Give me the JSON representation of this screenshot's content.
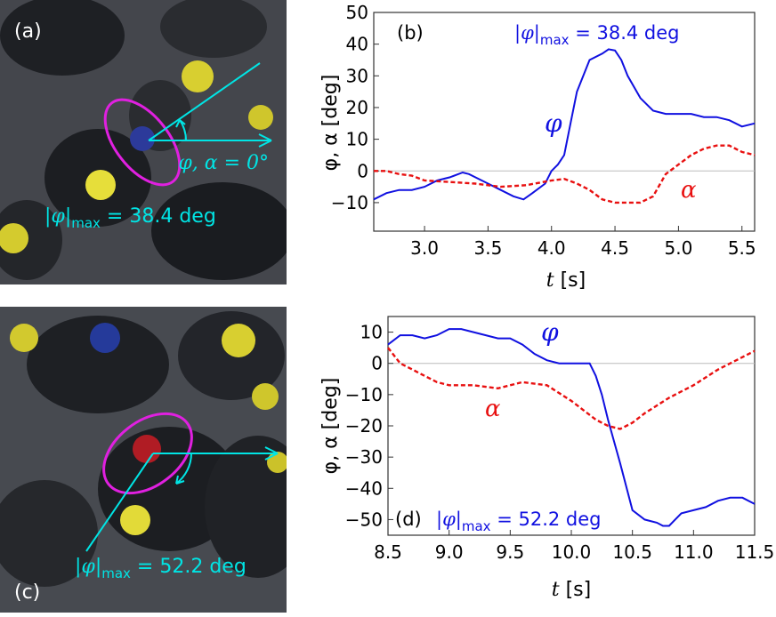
{
  "panels": {
    "a": {
      "label": "(a)",
      "annotation_prefix": "|φ|",
      "annotation_sub": "max",
      "annotation_value": " = 38.4 deg",
      "arrow_label": "φ, α = 0°"
    },
    "c": {
      "label": "(c)",
      "annotation_prefix": "|φ|",
      "annotation_sub": "max",
      "annotation_value": " = 52.2 deg"
    }
  },
  "colors": {
    "phi": "#1010e0",
    "alpha": "#e81010",
    "cyan": "#00e5e5",
    "magenta": "#e020e0",
    "photo_bg": "#3a3c40"
  },
  "chart_data": [
    {
      "panel_label": "(b)",
      "type": "line",
      "title_prefix": "|φ|",
      "title_sub": "max",
      "title_value": " = 38.4 deg",
      "xlabel": "t [s]",
      "ylabel": "φ, α [deg]",
      "xlim": [
        2.6,
        5.6
      ],
      "ylim": [
        -19,
        50
      ],
      "xticks": [
        "3.0",
        "3.5",
        "4.0",
        "4.5",
        "5.0",
        "5.5"
      ],
      "xtick_values": [
        3.0,
        3.5,
        4.0,
        4.5,
        5.0,
        5.5
      ],
      "yticks": [
        "−10",
        "0",
        "10",
        "20",
        "30",
        "40",
        "50"
      ],
      "ytick_values": [
        -10,
        0,
        10,
        20,
        30,
        40,
        50
      ],
      "series": [
        {
          "name": "φ",
          "style": "solid",
          "x": [
            2.6,
            2.7,
            2.8,
            2.9,
            3.0,
            3.1,
            3.2,
            3.3,
            3.35,
            3.4,
            3.5,
            3.6,
            3.7,
            3.78,
            3.85,
            3.95,
            4.0,
            4.05,
            4.1,
            4.15,
            4.2,
            4.3,
            4.4,
            4.45,
            4.5,
            4.55,
            4.6,
            4.7,
            4.8,
            4.9,
            5.0,
            5.1,
            5.2,
            5.3,
            5.4,
            5.5,
            5.6
          ],
          "values": [
            -9,
            -7,
            -6,
            -6,
            -5,
            -3,
            -2,
            -0.5,
            -1,
            -2,
            -4,
            -6,
            -8,
            -9,
            -7,
            -4,
            0,
            2,
            5,
            15,
            25,
            35,
            37,
            38.4,
            38,
            35,
            30,
            23,
            19,
            18,
            18,
            18,
            17,
            17,
            16,
            14,
            15
          ]
        },
        {
          "name": "α",
          "style": "dashed",
          "x": [
            2.6,
            2.7,
            2.8,
            2.9,
            3.0,
            3.2,
            3.4,
            3.6,
            3.8,
            4.0,
            4.1,
            4.2,
            4.3,
            4.4,
            4.5,
            4.6,
            4.7,
            4.8,
            4.9,
            5.0,
            5.1,
            5.2,
            5.3,
            5.4,
            5.5,
            5.6
          ],
          "values": [
            0,
            0,
            -1,
            -1.5,
            -3,
            -3.5,
            -4,
            -5,
            -4.5,
            -3,
            -2.5,
            -4,
            -6,
            -9,
            -10,
            -10,
            -10,
            -8,
            -1,
            2,
            5,
            7,
            8,
            8,
            6,
            5
          ]
        }
      ],
      "series_labels": [
        "φ",
        "α"
      ]
    },
    {
      "panel_label": "(d)",
      "type": "line",
      "title_prefix": "|φ|",
      "title_sub": "max",
      "title_value": " = 52.2 deg",
      "xlabel": "t [s]",
      "ylabel": "φ, α [deg]",
      "xlim": [
        8.5,
        11.5
      ],
      "ylim": [
        -55,
        15
      ],
      "xticks": [
        "8.5",
        "9.0",
        "9.5",
        "10.0",
        "10.5",
        "11.0",
        "11.5"
      ],
      "xtick_values": [
        8.5,
        9.0,
        9.5,
        10.0,
        10.5,
        11.0,
        11.5
      ],
      "yticks": [
        "10",
        "0",
        "−10",
        "−20",
        "−30",
        "−40",
        "−50"
      ],
      "ytick_values": [
        10,
        0,
        -10,
        -20,
        -30,
        -40,
        -50
      ],
      "series": [
        {
          "name": "φ",
          "style": "solid",
          "x": [
            8.5,
            8.6,
            8.7,
            8.8,
            8.9,
            9.0,
            9.1,
            9.2,
            9.3,
            9.4,
            9.5,
            9.6,
            9.7,
            9.8,
            9.9,
            10.0,
            10.1,
            10.15,
            10.2,
            10.25,
            10.3,
            10.4,
            10.5,
            10.6,
            10.7,
            10.75,
            10.8,
            10.85,
            10.9,
            11.0,
            11.1,
            11.2,
            11.3,
            11.4,
            11.5
          ],
          "values": [
            6,
            9,
            9,
            8,
            9,
            11,
            11,
            10,
            9,
            8,
            8,
            6,
            3,
            1,
            0,
            0,
            0,
            0,
            -4,
            -10,
            -18,
            -32,
            -47,
            -50,
            -51,
            -52,
            -52,
            -50,
            -48,
            -47,
            -46,
            -44,
            -43,
            -43,
            -45
          ]
        },
        {
          "name": "α",
          "style": "dashed",
          "x": [
            8.5,
            8.6,
            8.7,
            8.8,
            8.9,
            9.0,
            9.2,
            9.4,
            9.6,
            9.8,
            10.0,
            10.1,
            10.2,
            10.3,
            10.4,
            10.5,
            10.6,
            10.8,
            11.0,
            11.2,
            11.4,
            11.5
          ],
          "values": [
            5,
            0,
            -2,
            -4,
            -6,
            -7,
            -7,
            -8,
            -6,
            -7,
            -12,
            -15,
            -18,
            -20,
            -21,
            -19,
            -16,
            -11,
            -7,
            -2,
            2,
            4
          ]
        }
      ],
      "series_labels": [
        "φ",
        "α"
      ]
    }
  ]
}
